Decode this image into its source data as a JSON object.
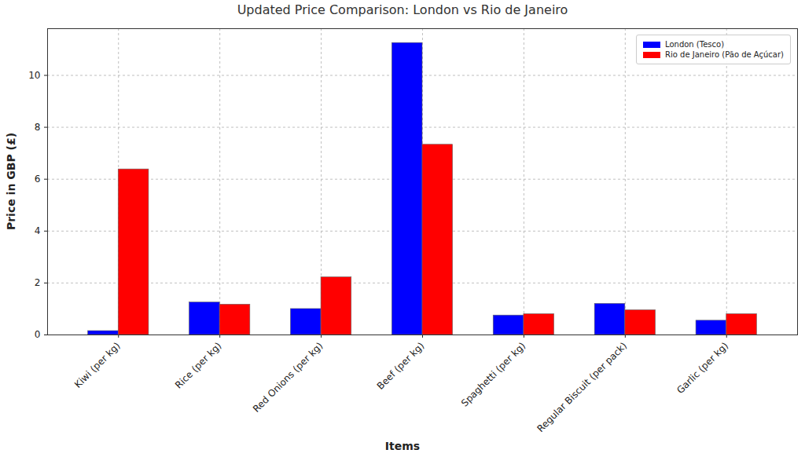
{
  "chart_data": {
    "type": "bar",
    "title": "Updated Price Comparison: London vs Rio de Janeiro",
    "x_label": "Items",
    "y_label": "Price in GBP (£)",
    "categories": [
      "Kiwi (per kg)",
      "Rice (per kg)",
      "Red Onions (per kg)",
      "Beef (per kg)",
      "Spaghetti (per kg)",
      "Regular Biscuit (per pack)",
      "Garlic (per kg)"
    ],
    "series": [
      {
        "name": "London (Tesco)",
        "color": "#0000ff",
        "values": [
          0.15,
          1.25,
          1.0,
          11.25,
          0.75,
          1.2,
          0.55
        ]
      },
      {
        "name": "Rio de Janeiro (Pão de Açúcar)",
        "color": "#ff0000",
        "values": [
          6.38,
          1.17,
          2.22,
          7.33,
          0.8,
          0.95,
          0.8
        ]
      }
    ],
    "ylim": [
      0,
      11.8
    ],
    "yticks": [
      0,
      2,
      4,
      6,
      8,
      10
    ],
    "grid": true,
    "legend": "upper right"
  }
}
